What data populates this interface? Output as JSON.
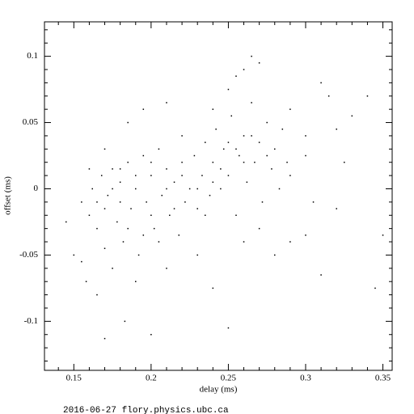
{
  "chart_data": {
    "type": "scatter",
    "xlabel": "delay (ms)",
    "ylabel": "offset (ms)",
    "footer": "2016-06-27 flory.physics.ubc.ca",
    "color": "#000000",
    "xlim": [
      0.131,
      0.356
    ],
    "ylim": [
      -0.137,
      0.126
    ],
    "xticks": [
      0.15,
      0.2,
      0.25,
      0.3,
      0.35
    ],
    "yticks": [
      -0.1,
      -0.05,
      0,
      0.05,
      0.1
    ],
    "xminorticks": [
      0.14,
      0.16,
      0.17,
      0.18,
      0.19,
      0.21,
      0.22,
      0.23,
      0.24,
      0.26,
      0.27,
      0.28,
      0.29,
      0.31,
      0.32,
      0.33,
      0.34
    ],
    "yminorticks": [
      0.12,
      0.11,
      0.09,
      0.08,
      0.07,
      0.06,
      0.04,
      0.03,
      0.02,
      0.01,
      -0.01,
      -0.02,
      -0.03,
      -0.04,
      -0.06,
      -0.07,
      -0.08,
      -0.09,
      -0.11,
      -0.12,
      -0.13
    ],
    "x": [
      0.155,
      0.16,
      0.162,
      0.165,
      0.168,
      0.17,
      0.172,
      0.175,
      0.178,
      0.18,
      0.182,
      0.185,
      0.187,
      0.19,
      0.192,
      0.195,
      0.197,
      0.2,
      0.202,
      0.205,
      0.207,
      0.21,
      0.212,
      0.215,
      0.218,
      0.22,
      0.222,
      0.225,
      0.228,
      0.23,
      0.233,
      0.235,
      0.238,
      0.24,
      0.242,
      0.245,
      0.247,
      0.25,
      0.252,
      0.255,
      0.257,
      0.26,
      0.262,
      0.265,
      0.267,
      0.27,
      0.272,
      0.275,
      0.278,
      0.28,
      0.283,
      0.285,
      0.288,
      0.29,
      0.145,
      0.15,
      0.158,
      0.165,
      0.17,
      0.183,
      0.2,
      0.185,
      0.195,
      0.21,
      0.24,
      0.25,
      0.26,
      0.265,
      0.27,
      0.29,
      0.3,
      0.31,
      0.315,
      0.32,
      0.325,
      0.33,
      0.34,
      0.345,
      0.35,
      0.3,
      0.31,
      0.32,
      0.29,
      0.305,
      0.28,
      0.3,
      0.16,
      0.17,
      0.155,
      0.175,
      0.19,
      0.21,
      0.23,
      0.22,
      0.24,
      0.25,
      0.255,
      0.26,
      0.27,
      0.17,
      0.18,
      0.19,
      0.2,
      0.21,
      0.22,
      0.18,
      0.2,
      0.215,
      0.23,
      0.245,
      0.255,
      0.26,
      0.265,
      0.275,
      0.25,
      0.24,
      0.235,
      0.165,
      0.175,
      0.185,
      0.195,
      0.205
    ],
    "values": [
      -0.01,
      -0.02,
      0.0,
      -0.03,
      0.01,
      -0.045,
      -0.005,
      0.015,
      -0.025,
      0.005,
      -0.04,
      0.02,
      -0.015,
      0.0,
      -0.05,
      0.025,
      -0.01,
      0.01,
      -0.03,
      0.03,
      -0.005,
      0.015,
      -0.02,
      0.005,
      -0.035,
      0.02,
      -0.01,
      0.0,
      0.025,
      -0.015,
      0.01,
      0.035,
      -0.005,
      0.02,
      0.045,
      0.0,
      0.03,
      0.01,
      0.055,
      -0.02,
      0.025,
      0.04,
      0.005,
      0.065,
      0.02,
      0.035,
      -0.01,
      0.05,
      0.015,
      0.03,
      0.0,
      0.045,
      0.02,
      0.01,
      -0.025,
      -0.05,
      -0.07,
      -0.08,
      -0.113,
      -0.1,
      -0.11,
      0.05,
      0.06,
      0.065,
      -0.075,
      -0.105,
      0.09,
      0.1,
      0.095,
      0.06,
      0.04,
      0.08,
      0.07,
      0.045,
      0.02,
      0.055,
      0.07,
      -0.075,
      -0.035,
      -0.035,
      -0.065,
      -0.015,
      -0.04,
      -0.01,
      -0.05,
      0.025,
      0.015,
      0.03,
      -0.055,
      -0.06,
      -0.07,
      -0.06,
      -0.05,
      0.04,
      0.06,
      0.075,
      0.085,
      -0.04,
      -0.03,
      -0.015,
      -0.01,
      0.01,
      -0.02,
      0.0,
      0.01,
      0.015,
      0.02,
      -0.015,
      0.0,
      0.015,
      0.03,
      0.02,
      0.04,
      0.025,
      0.035,
      0.005,
      -0.02,
      -0.01,
      0.0,
      -0.03,
      -0.035,
      -0.04
    ]
  }
}
